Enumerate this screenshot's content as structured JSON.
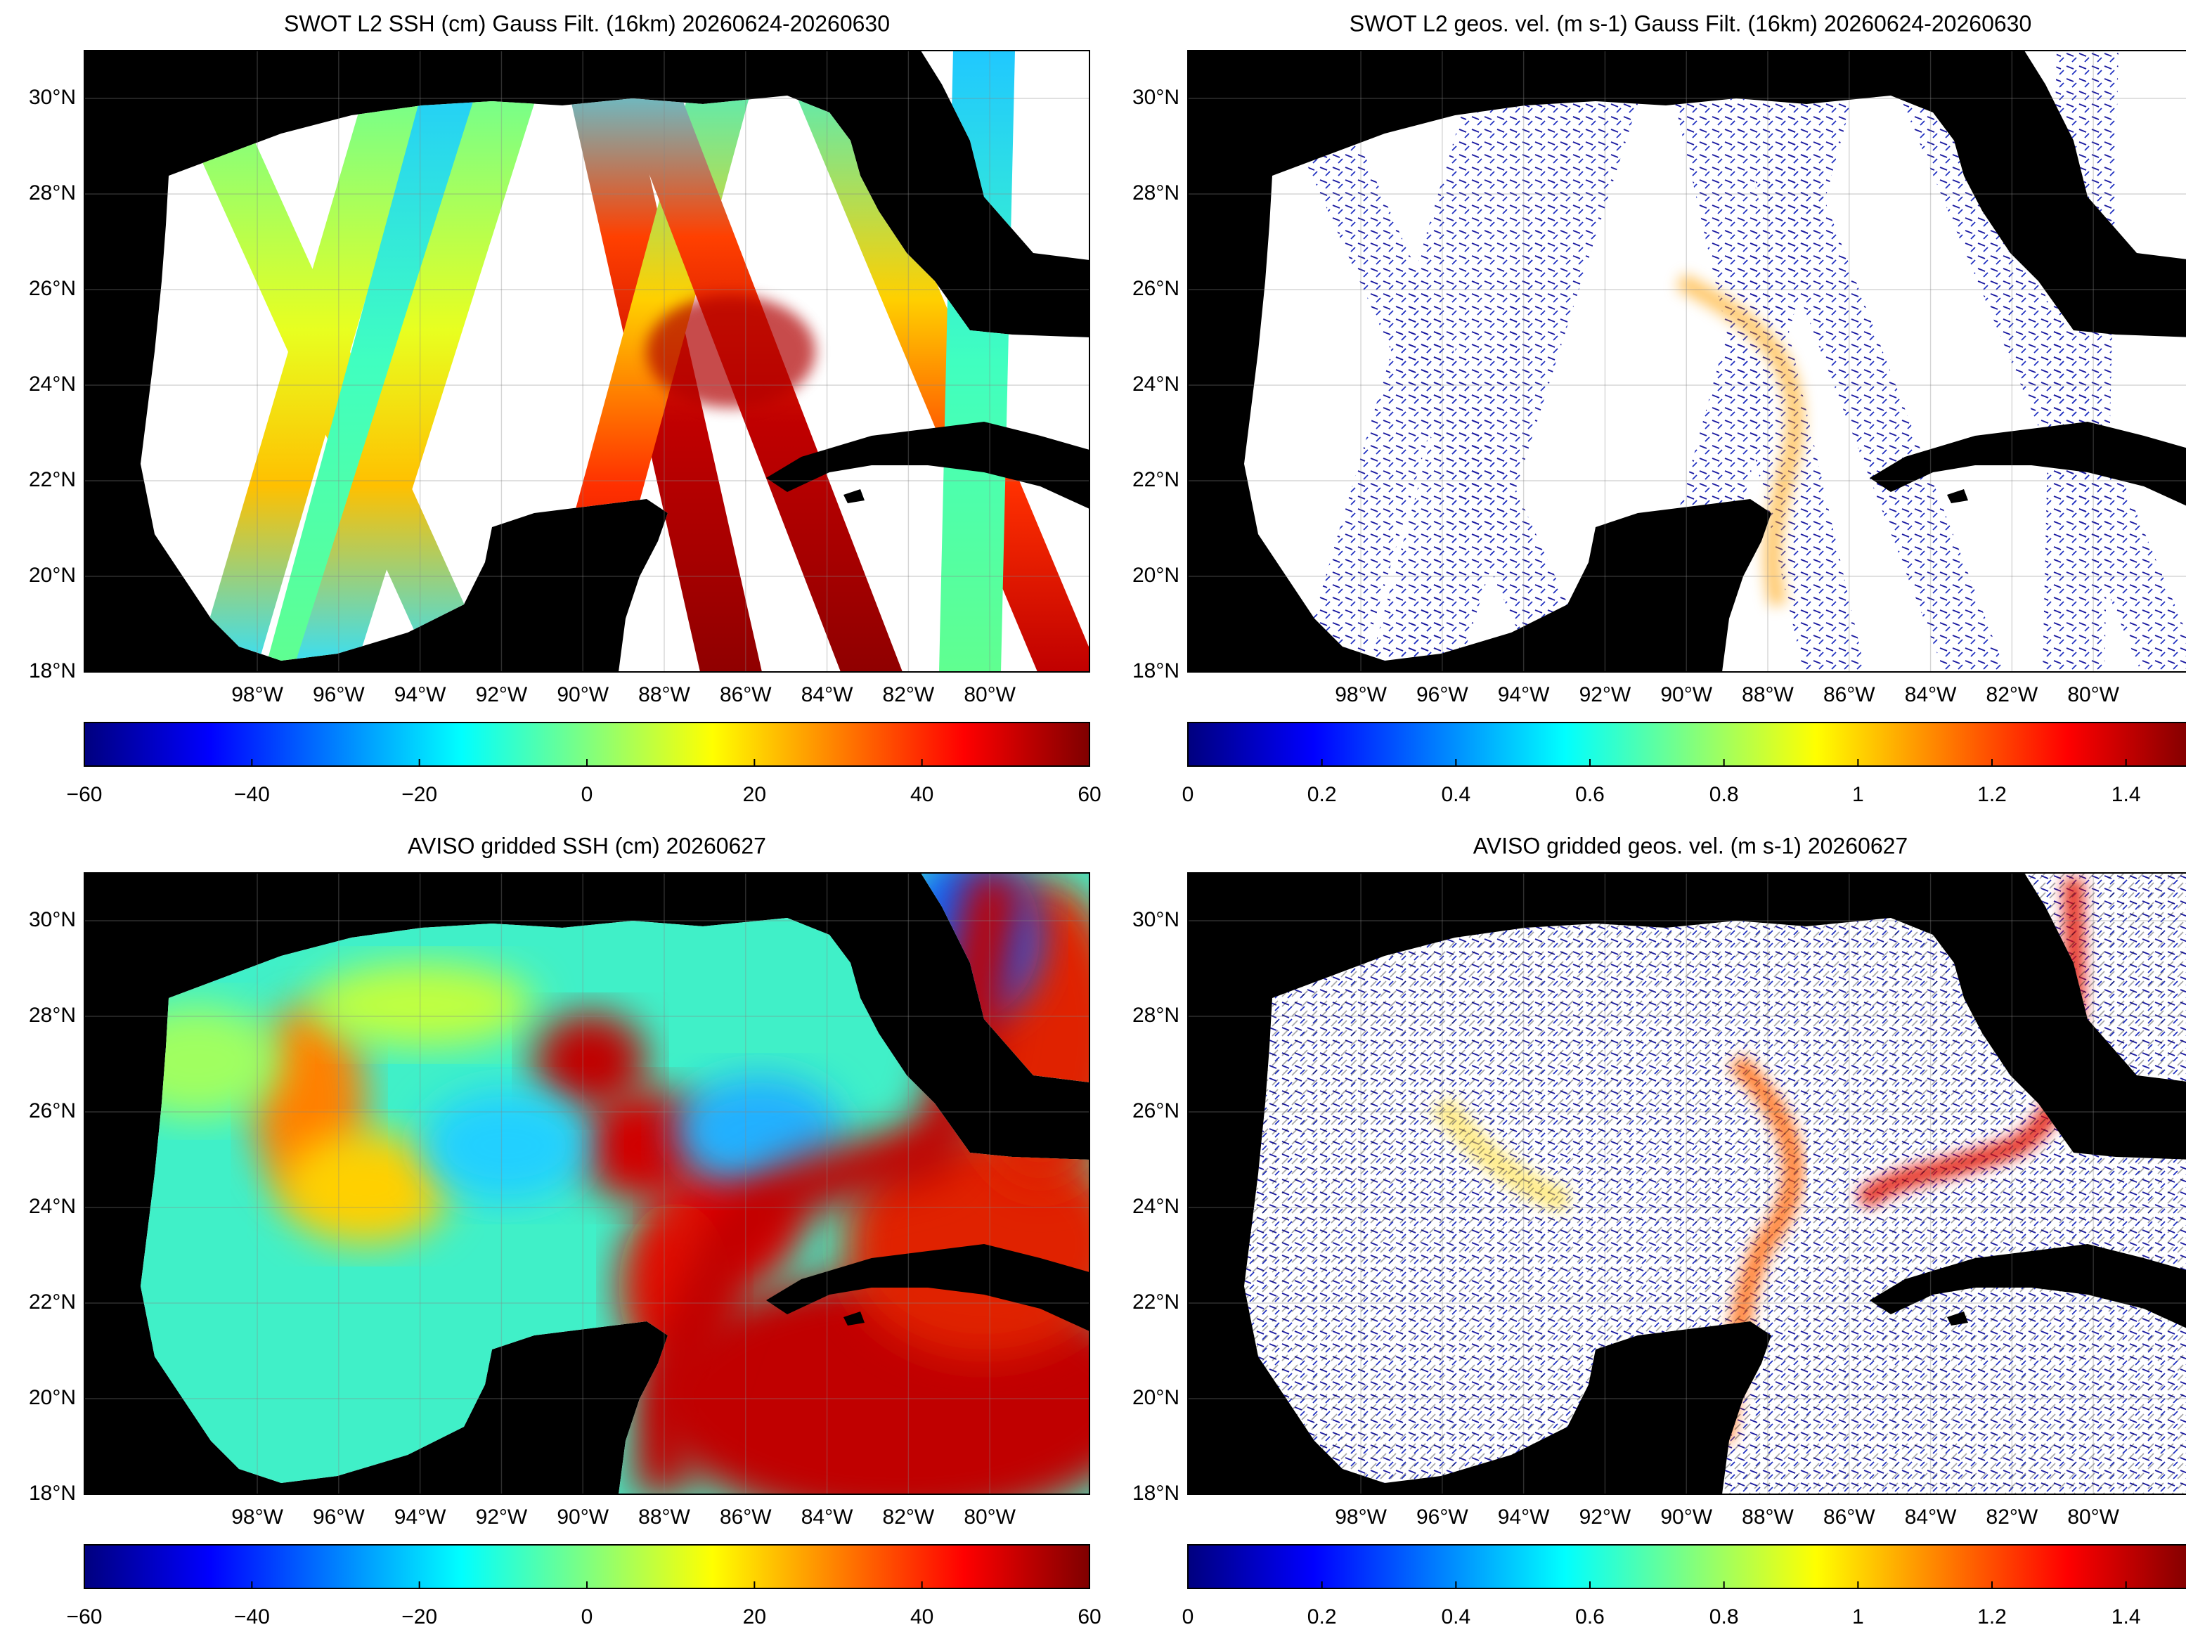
{
  "chart_data": [
    {
      "type": "map",
      "title": "SWOT L2 SSH (cm) Gauss Filt. (16km) 20260624-20260630",
      "field": "swath-ssh",
      "xlim": [
        -102.25,
        -77.55
      ],
      "ylim": [
        18,
        31
      ],
      "xticks": [
        {
          "value": -98,
          "label": "98°W"
        },
        {
          "value": -96,
          "label": "96°W"
        },
        {
          "value": -94,
          "label": "94°W"
        },
        {
          "value": -92,
          "label": "92°W"
        },
        {
          "value": -90,
          "label": "90°W"
        },
        {
          "value": -88,
          "label": "88°W"
        },
        {
          "value": -86,
          "label": "86°W"
        },
        {
          "value": -84,
          "label": "84°W"
        },
        {
          "value": -82,
          "label": "82°W"
        },
        {
          "value": -80,
          "label": "80°W"
        }
      ],
      "yticks": [
        {
          "value": 18,
          "label": "18°N"
        },
        {
          "value": 20,
          "label": "20°N"
        },
        {
          "value": 22,
          "label": "22°N"
        },
        {
          "value": 24,
          "label": "24°N"
        },
        {
          "value": 26,
          "label": "26°N"
        },
        {
          "value": 28,
          "label": "28°N"
        },
        {
          "value": 30,
          "label": "30°N"
        }
      ],
      "colorbar": {
        "lim": [
          -60,
          60
        ],
        "ticks": [
          {
            "value": -60,
            "label": "−60"
          },
          {
            "value": -40,
            "label": "−40"
          },
          {
            "value": -20,
            "label": "−20"
          },
          0,
          20,
          40,
          60
        ]
      }
    },
    {
      "type": "map",
      "title": "SWOT L2 geos. vel. (m s-1) Gauss Filt. (16km) 20260624-20260630",
      "field": "swath-vel",
      "xlim": [
        -102.25,
        -77.55
      ],
      "ylim": [
        18,
        31
      ],
      "xticks": [
        {
          "value": -98,
          "label": "98°W"
        },
        {
          "value": -96,
          "label": "96°W"
        },
        {
          "value": -94,
          "label": "94°W"
        },
        {
          "value": -92,
          "label": "92°W"
        },
        {
          "value": -90,
          "label": "90°W"
        },
        {
          "value": -88,
          "label": "88°W"
        },
        {
          "value": -86,
          "label": "86°W"
        },
        {
          "value": -84,
          "label": "84°W"
        },
        {
          "value": -82,
          "label": "82°W"
        },
        {
          "value": -80,
          "label": "80°W"
        }
      ],
      "yticks": [
        {
          "value": 18,
          "label": "18°N"
        },
        {
          "value": 20,
          "label": "20°N"
        },
        {
          "value": 22,
          "label": "22°N"
        },
        {
          "value": 24,
          "label": "24°N"
        },
        {
          "value": 26,
          "label": "26°N"
        },
        {
          "value": 28,
          "label": "28°N"
        },
        {
          "value": 30,
          "label": "30°N"
        }
      ],
      "colorbar": {
        "lim": [
          0,
          1.5
        ],
        "ticks": [
          0,
          0.2,
          0.4,
          0.6,
          0.8,
          1,
          1.2,
          1.4
        ]
      }
    },
    {
      "type": "map",
      "title": "AVISO gridded SSH (cm) 20260627",
      "field": "grid-ssh",
      "xlim": [
        -102.25,
        -77.55
      ],
      "ylim": [
        18,
        31
      ],
      "xticks": [
        {
          "value": -98,
          "label": "98°W"
        },
        {
          "value": -96,
          "label": "96°W"
        },
        {
          "value": -94,
          "label": "94°W"
        },
        {
          "value": -92,
          "label": "92°W"
        },
        {
          "value": -90,
          "label": "90°W"
        },
        {
          "value": -88,
          "label": "88°W"
        },
        {
          "value": -86,
          "label": "86°W"
        },
        {
          "value": -84,
          "label": "84°W"
        },
        {
          "value": -82,
          "label": "82°W"
        },
        {
          "value": -80,
          "label": "80°W"
        }
      ],
      "yticks": [
        {
          "value": 18,
          "label": "18°N"
        },
        {
          "value": 20,
          "label": "20°N"
        },
        {
          "value": 22,
          "label": "22°N"
        },
        {
          "value": 24,
          "label": "24°N"
        },
        {
          "value": 26,
          "label": "26°N"
        },
        {
          "value": 28,
          "label": "28°N"
        },
        {
          "value": 30,
          "label": "30°N"
        }
      ],
      "colorbar": {
        "lim": [
          -60,
          60
        ],
        "ticks": [
          {
            "value": -60,
            "label": "−60"
          },
          {
            "value": -40,
            "label": "−40"
          },
          {
            "value": -20,
            "label": "−20"
          },
          0,
          20,
          40,
          60
        ]
      }
    },
    {
      "type": "map",
      "title": "AVISO gridded geos. vel. (m s-1)  20260627",
      "field": "grid-vel",
      "xlim": [
        -102.25,
        -77.55
      ],
      "ylim": [
        18,
        31
      ],
      "xticks": [
        {
          "value": -98,
          "label": "98°W"
        },
        {
          "value": -96,
          "label": "96°W"
        },
        {
          "value": -94,
          "label": "94°W"
        },
        {
          "value": -92,
          "label": "92°W"
        },
        {
          "value": -90,
          "label": "90°W"
        },
        {
          "value": -88,
          "label": "88°W"
        },
        {
          "value": -86,
          "label": "86°W"
        },
        {
          "value": -84,
          "label": "84°W"
        },
        {
          "value": -82,
          "label": "82°W"
        },
        {
          "value": -80,
          "label": "80°W"
        }
      ],
      "yticks": [
        {
          "value": 18,
          "label": "18°N"
        },
        {
          "value": 20,
          "label": "20°N"
        },
        {
          "value": 22,
          "label": "22°N"
        },
        {
          "value": 24,
          "label": "24°N"
        },
        {
          "value": 26,
          "label": "26°N"
        },
        {
          "value": 28,
          "label": "28°N"
        },
        {
          "value": 30,
          "label": "30°N"
        }
      ],
      "colorbar": {
        "lim": [
          0,
          1.5
        ],
        "ticks": [
          0,
          0.2,
          0.4,
          0.6,
          0.8,
          1,
          1.2,
          1.4
        ]
      }
    }
  ]
}
